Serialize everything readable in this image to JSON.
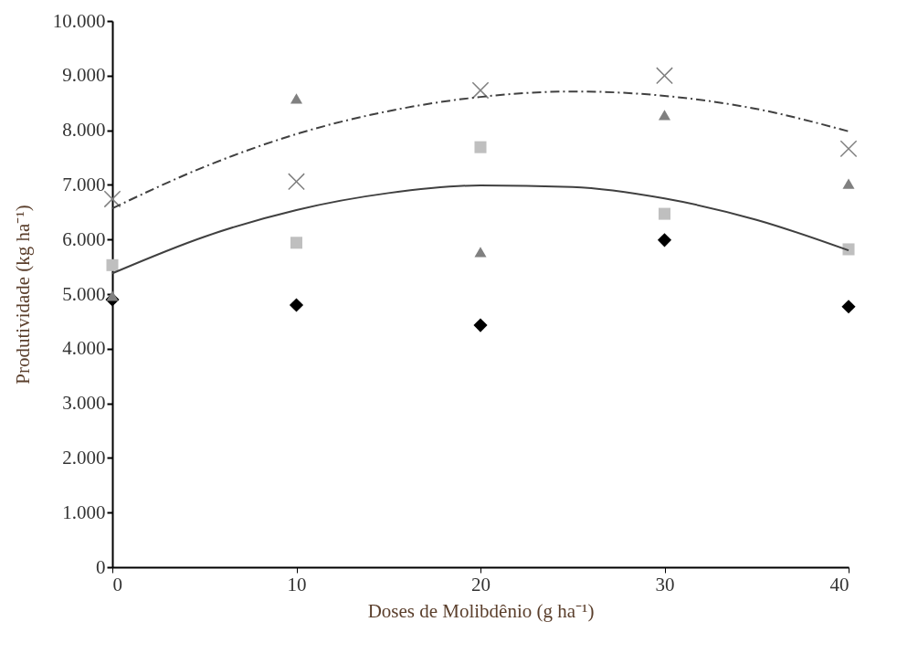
{
  "chart_data": {
    "type": "scatter",
    "xlabel": "Doses de Molibdênio (g ha⁻¹)",
    "ylabel": "Produtividade (kg ha⁻¹)",
    "xlim": [
      0,
      40
    ],
    "xticks": [
      0,
      10,
      20,
      30,
      40
    ],
    "ylim": [
      0,
      10000
    ],
    "yticks": [
      0,
      {
        "value": 1000,
        "label": "1.000"
      },
      {
        "value": 2000,
        "label": "2.000"
      },
      {
        "value": 3000,
        "label": "3.000"
      },
      {
        "value": 4000,
        "label": "4.000"
      },
      {
        "value": 5000,
        "label": "5.000"
      },
      {
        "value": 6000,
        "label": "6.000"
      },
      {
        "value": 7000,
        "label": "7.000"
      },
      {
        "value": 8000,
        "label": "8.000"
      },
      {
        "value": 9000,
        "label": "9.000"
      },
      {
        "value": 10000,
        "label": "10.000"
      }
    ],
    "grid": false,
    "series": [
      {
        "marker": "diamond",
        "color": "#000000",
        "x": [
          0,
          10,
          20,
          30,
          40
        ],
        "values": [
          4900,
          4800,
          4430,
          5990,
          4770
        ]
      },
      {
        "marker": "square",
        "color": "#bfbfbf",
        "x": [
          0,
          10,
          20,
          30,
          40
        ],
        "values": [
          5530,
          5940,
          7690,
          6470,
          5820
        ]
      },
      {
        "marker": "triangle",
        "color": "#808080",
        "x": [
          0,
          10,
          20,
          30,
          40
        ],
        "values": [
          4970,
          8580,
          5770,
          8280,
          7020
        ]
      },
      {
        "marker": "cross",
        "color": "#808080",
        "x": [
          0,
          10,
          20,
          30,
          40
        ],
        "values": [
          6740,
          7060,
          8730,
          9000,
          7660
        ]
      },
      {
        "type": "line",
        "marker": "none",
        "line_style": "solid",
        "color": "#404040",
        "x": [
          0,
          5,
          10,
          15,
          20,
          25,
          30,
          35,
          40
        ],
        "values": [
          5380,
          6050,
          6540,
          6850,
          6990,
          6960,
          6750,
          6360,
          5800
        ]
      },
      {
        "type": "line",
        "marker": "none",
        "line_style": "dashed",
        "color": "#404040",
        "x": [
          0,
          5,
          10,
          15,
          20,
          25,
          30,
          35,
          40
        ],
        "values": [
          6570,
          7330,
          7930,
          8350,
          8610,
          8710,
          8630,
          8390,
          7980
        ]
      }
    ]
  }
}
